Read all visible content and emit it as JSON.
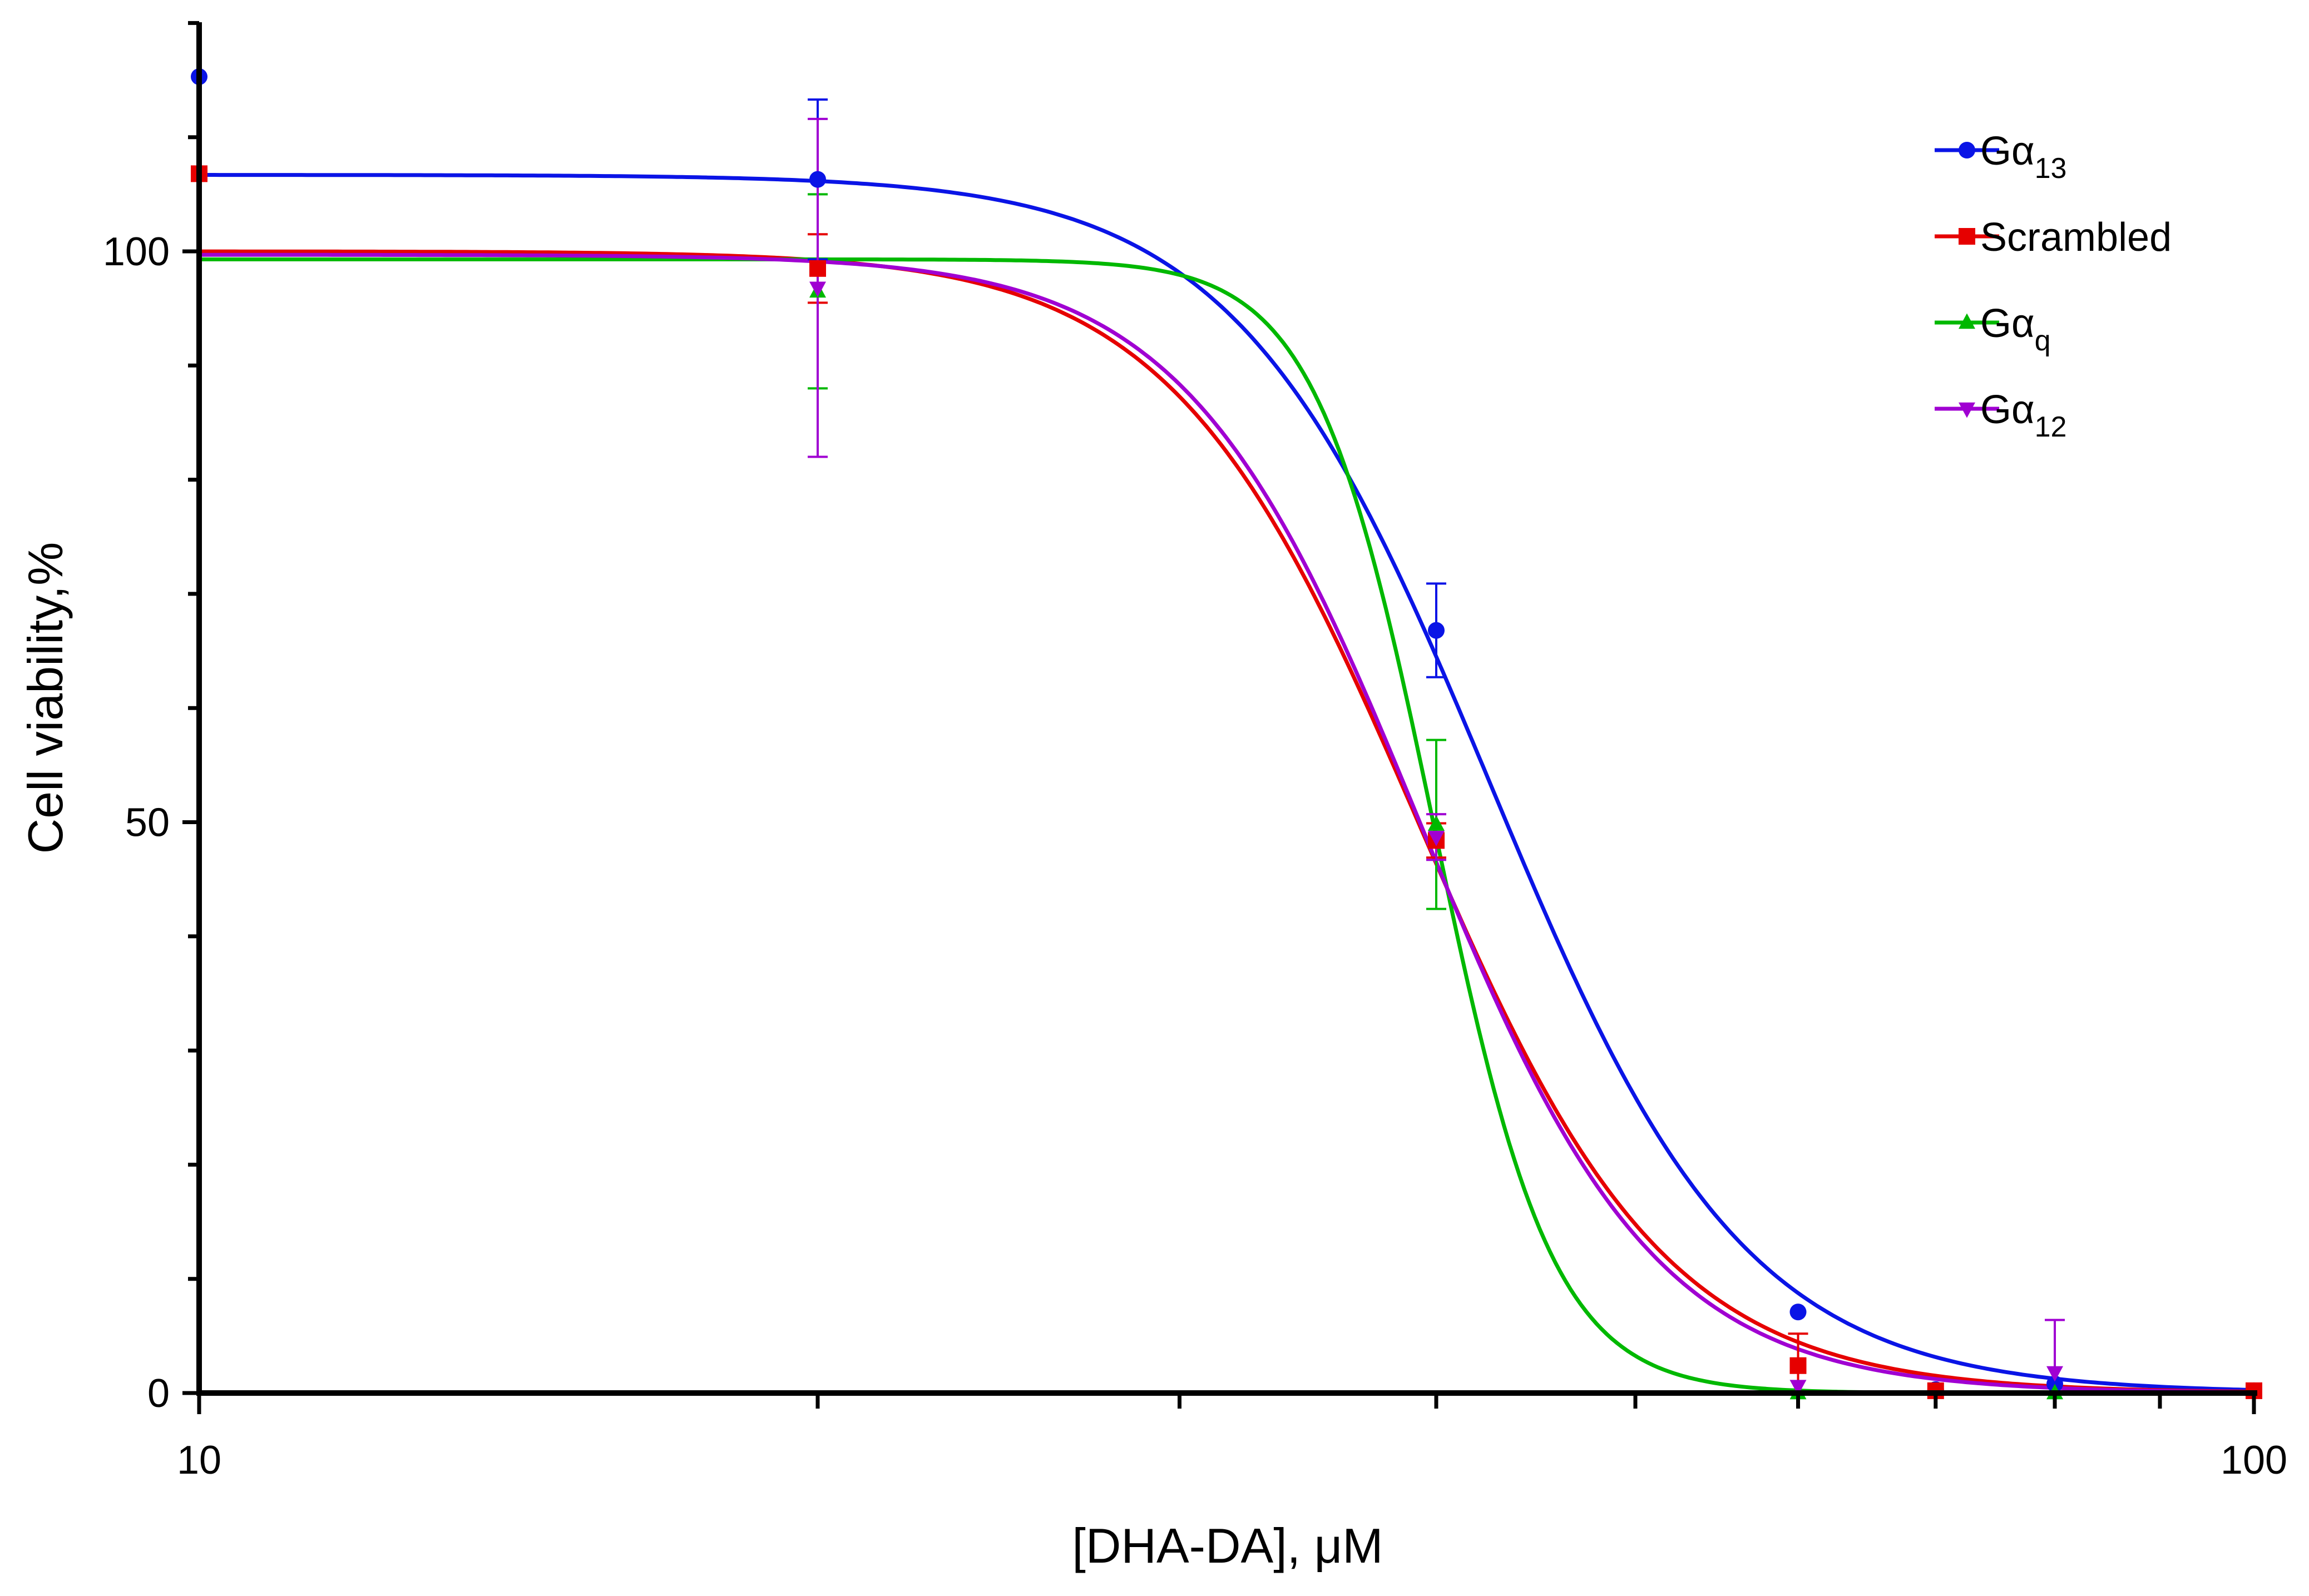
{
  "chart_data": {
    "type": "scatter",
    "xlabel": "[DHA-DA], μM",
    "ylabel": "Cell viability,%",
    "x_scale": "log",
    "xlim": [
      10,
      100
    ],
    "ylim": [
      0,
      120
    ],
    "x_ticks": [
      10,
      100
    ],
    "x_tick_labels": [
      "10",
      "100"
    ],
    "y_ticks": [
      0,
      50,
      100
    ],
    "y_tick_labels": [
      "0",
      "50",
      "100"
    ],
    "grid": false,
    "legend_position": "top-right",
    "series": [
      {
        "name": "Gα13",
        "name_base": "Gα",
        "name_sub": "13",
        "color": "#0a14e6",
        "marker": "circle",
        "points": [
          {
            "x": 10,
            "y": 115.3
          },
          {
            "x": 20,
            "y": 106.3,
            "err": 7.0
          },
          {
            "x": 40,
            "y": 66.8,
            "err": 4.1
          },
          {
            "x": 60,
            "y": 7.1
          },
          {
            "x": 70,
            "y": 0.3
          },
          {
            "x": 80,
            "y": 0.8
          },
          {
            "x": 100,
            "y": 0.2
          }
        ],
        "fit": {
          "top": 106.7,
          "bottom": 0,
          "ec50": 42.5,
          "hill": 7.0
        }
      },
      {
        "name": "Scrambled",
        "name_base": "Scrambled",
        "name_sub": "",
        "color": "#e60000",
        "marker": "square",
        "points": [
          {
            "x": 10,
            "y": 106.8
          },
          {
            "x": 20,
            "y": 98.5,
            "err": 3.0
          },
          {
            "x": 40,
            "y": 48.4,
            "err": 1.5
          },
          {
            "x": 60,
            "y": 2.4,
            "err": 2.8
          },
          {
            "x": 70,
            "y": 0.2
          },
          {
            "x": 100,
            "y": 0.2
          }
        ],
        "fit": {
          "top": 100.0,
          "bottom": 0,
          "ec50": 39.2,
          "hill": 7.2
        }
      },
      {
        "name": "Gαq",
        "name_base": "Gα",
        "name_sub": "q",
        "color": "#00b800",
        "marker": "triangle-up",
        "points": [
          {
            "x": 20,
            "y": 96.5,
            "err": 8.5
          },
          {
            "x": 40,
            "y": 49.8,
            "err": 7.4
          },
          {
            "x": 60,
            "y": 0.0
          },
          {
            "x": 80,
            "y": 0.0
          }
        ],
        "fit": {
          "top": 99.3,
          "bottom": 0,
          "ec50": 39.9,
          "hill": 15.0
        }
      },
      {
        "name": "Gα12",
        "name_base": "Gα",
        "name_sub": "12",
        "color": "#a000d2",
        "marker": "triangle-down",
        "points": [
          {
            "x": 20,
            "y": 96.8,
            "err": 14.8
          },
          {
            "x": 40,
            "y": 48.7,
            "err": 2.0
          },
          {
            "x": 60,
            "y": 0.6
          },
          {
            "x": 80,
            "y": 1.8,
            "err": 4.6
          }
        ],
        "fit": {
          "top": 99.7,
          "bottom": 0,
          "ec50": 39.3,
          "hill": 7.6
        }
      }
    ]
  }
}
